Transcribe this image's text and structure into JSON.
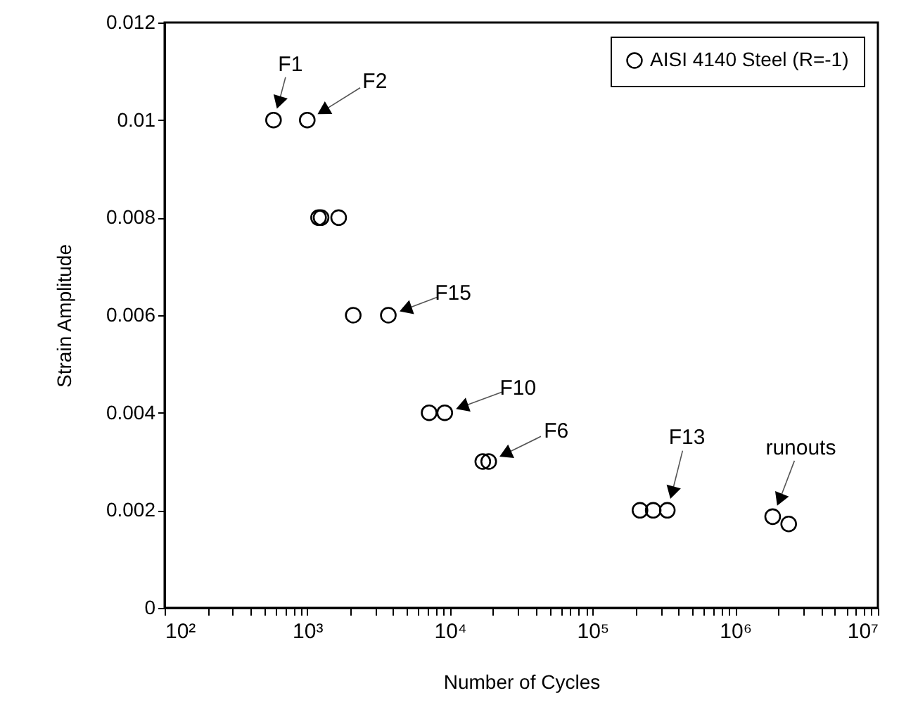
{
  "chart_data": {
    "type": "scatter",
    "xlabel": "Number of Cycles",
    "ylabel": "Strain Amplitude",
    "log": "x",
    "grid": false,
    "legend": "top right",
    "marker": "circle",
    "xlim": [
      100,
      10000000
    ],
    "ylim": [
      0,
      0.012
    ],
    "xticks": [
      {
        "value": 100,
        "label": "10²"
      },
      {
        "value": 200,
        "label": null
      },
      {
        "value": 300,
        "label": null
      },
      {
        "value": 400,
        "label": null
      },
      {
        "value": 500,
        "label": null
      },
      {
        "value": 600,
        "label": null
      },
      {
        "value": 700,
        "label": null
      },
      {
        "value": 800,
        "label": null
      },
      {
        "value": 900,
        "label": null
      },
      {
        "value": 1000,
        "label": "10³"
      },
      {
        "value": 2000,
        "label": null
      },
      {
        "value": 3000,
        "label": null
      },
      {
        "value": 4000,
        "label": null
      },
      {
        "value": 5000,
        "label": null
      },
      {
        "value": 6000,
        "label": null
      },
      {
        "value": 7000,
        "label": null
      },
      {
        "value": 8000,
        "label": null
      },
      {
        "value": 9000,
        "label": null
      },
      {
        "value": 10000,
        "label": "10⁴"
      },
      {
        "value": 20000,
        "label": null
      },
      {
        "value": 30000,
        "label": null
      },
      {
        "value": 40000,
        "label": null
      },
      {
        "value": 50000,
        "label": null
      },
      {
        "value": 60000,
        "label": null
      },
      {
        "value": 70000,
        "label": null
      },
      {
        "value": 80000,
        "label": null
      },
      {
        "value": 90000,
        "label": null
      },
      {
        "value": 100000,
        "label": "10⁵"
      },
      {
        "value": 200000,
        "label": null
      },
      {
        "value": 300000,
        "label": null
      },
      {
        "value": 400000,
        "label": null
      },
      {
        "value": 500000,
        "label": null
      },
      {
        "value": 600000,
        "label": null
      },
      {
        "value": 700000,
        "label": null
      },
      {
        "value": 800000,
        "label": null
      },
      {
        "value": 900000,
        "label": null
      },
      {
        "value": 1000000,
        "label": "10⁶"
      },
      {
        "value": 2000000,
        "label": null
      },
      {
        "value": 3000000,
        "label": null
      },
      {
        "value": 4000000,
        "label": null
      },
      {
        "value": 5000000,
        "label": null
      },
      {
        "value": 6000000,
        "label": null
      },
      {
        "value": 7000000,
        "label": null
      },
      {
        "value": 8000000,
        "label": null
      },
      {
        "value": 9000000,
        "label": null
      },
      {
        "value": 10000000,
        "label": "10⁷"
      }
    ],
    "yticks": [
      0,
      0.002,
      0.004,
      0.006,
      0.008,
      0.01,
      0.012
    ],
    "series": [
      {
        "name": "AISI 4140 Steel (R=-1)",
        "color": "#000000",
        "x": [
          580,
          1000,
          1200,
          1250,
          1660,
          2100,
          3700,
          7150,
          9200,
          17000,
          18700,
          215000,
          266000,
          334000,
          1830000,
          2370000
        ],
        "values": [
          0.01,
          0.01,
          0.008,
          0.008,
          0.008,
          0.006,
          0.006,
          0.004,
          0.004,
          0.003,
          0.003,
          0.002,
          0.002,
          0.002,
          0.00187,
          0.00172
        ]
      }
    ],
    "annotations": [
      {
        "text": "F1",
        "x": 580,
        "y": 0.01
      },
      {
        "text": "F2",
        "x": 1000,
        "y": 0.01
      },
      {
        "text": "F15",
        "x": 3700,
        "y": 0.006
      },
      {
        "text": "F10",
        "x": 9200,
        "y": 0.004
      },
      {
        "text": "F6",
        "x": 18700,
        "y": 0.003
      },
      {
        "text": "F13",
        "x": 334000,
        "y": 0.002
      },
      {
        "text": "runouts",
        "x": 1830000,
        "y": 0.00187
      }
    ]
  }
}
